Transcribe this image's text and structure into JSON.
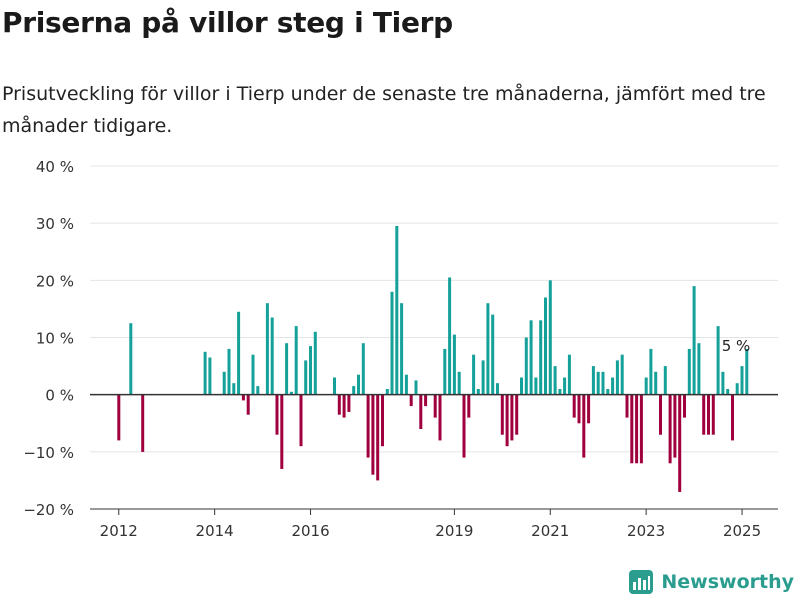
{
  "title": "Priserna på villor steg i Tierp",
  "subtitle": "Prisutveckling för villor i Tierp under de senaste tre månaderna, jämfört med tre månader tidigare.",
  "brand": {
    "name": "Newsworthy",
    "icon": "newsworthy-logo-icon"
  },
  "colors": {
    "positive": "#14a199",
    "negative": "#a0003e",
    "grid": "#e4e4e4",
    "axis": "#333333"
  },
  "chart_data": {
    "type": "bar",
    "xlabel": "",
    "ylabel": "",
    "ylim": [
      -20,
      40
    ],
    "yticks": [
      -20,
      -10,
      0,
      10,
      20,
      30,
      40
    ],
    "ytick_labels": [
      "−20 %",
      "−10 %",
      "0 %",
      "10 %",
      "20 %",
      "30 %",
      "40 %"
    ],
    "xticks": [
      2012,
      2014,
      2016,
      2019,
      2021,
      2023,
      2025
    ],
    "xtick_labels": [
      "2012",
      "2014",
      "2016",
      "2019",
      "2021",
      "2023",
      "2025"
    ],
    "grid": true,
    "annotation": {
      "text": "5 %",
      "x": 2025.0,
      "y": 5
    },
    "x": [
      2012.0,
      2012.25,
      2012.5,
      2013.8,
      2013.9,
      2014.2,
      2014.3,
      2014.4,
      2014.5,
      2014.6,
      2014.7,
      2014.8,
      2014.9,
      2015.1,
      2015.2,
      2015.3,
      2015.4,
      2015.5,
      2015.6,
      2015.7,
      2015.8,
      2015.9,
      2016.0,
      2016.1,
      2016.5,
      2016.6,
      2016.7,
      2016.8,
      2016.9,
      2017.0,
      2017.1,
      2017.2,
      2017.3,
      2017.4,
      2017.5,
      2017.6,
      2017.7,
      2017.8,
      2017.9,
      2018.0,
      2018.1,
      2018.2,
      2018.3,
      2018.4,
      2018.5,
      2018.6,
      2018.7,
      2018.8,
      2018.9,
      2019.0,
      2019.1,
      2019.2,
      2019.3,
      2019.4,
      2019.5,
      2019.6,
      2019.7,
      2019.8,
      2019.9,
      2020.0,
      2020.1,
      2020.2,
      2020.3,
      2020.4,
      2020.5,
      2020.6,
      2020.7,
      2020.8,
      2020.9,
      2021.0,
      2021.1,
      2021.2,
      2021.3,
      2021.4,
      2021.5,
      2021.6,
      2021.7,
      2021.8,
      2021.9,
      2022.0,
      2022.1,
      2022.2,
      2022.3,
      2022.4,
      2022.5,
      2022.6,
      2022.7,
      2022.8,
      2022.9,
      2023.0,
      2023.1,
      2023.2,
      2023.3,
      2023.4,
      2023.5,
      2023.6,
      2023.7,
      2023.8,
      2023.9,
      2024.0,
      2024.1,
      2024.2,
      2024.3,
      2024.4,
      2024.5,
      2024.6,
      2024.7,
      2024.8,
      2024.9,
      2025.0,
      2025.1
    ],
    "values": [
      -8,
      12.5,
      -10,
      7.5,
      6.5,
      4,
      8,
      2,
      14.5,
      -1,
      -3.5,
      7,
      1.5,
      16,
      13.5,
      -7,
      -13,
      9,
      0.5,
      12,
      -9,
      6,
      8.5,
      11,
      3,
      -3.5,
      -4,
      -3,
      1.5,
      3.5,
      9,
      -11,
      -14,
      -15,
      -9,
      1,
      18,
      29.5,
      16,
      3.5,
      -2,
      2.5,
      -6,
      -2,
      0,
      -4,
      -8,
      8,
      20.5,
      10.5,
      4,
      -11,
      -4,
      7,
      1,
      6,
      16,
      14,
      2,
      -7,
      -9,
      -8,
      -7,
      3,
      10,
      13,
      3,
      13,
      17,
      20,
      5,
      1,
      3,
      7,
      -4,
      -5,
      -11,
      -5,
      5,
      4,
      4,
      1,
      3,
      6,
      7,
      -4,
      -12,
      -12,
      -12,
      3,
      8,
      4,
      -7,
      5,
      -12,
      -11,
      -17,
      -4,
      8,
      19,
      9,
      -7,
      -7,
      -7,
      12,
      4,
      1,
      -8,
      2,
      5,
      8
    ]
  }
}
